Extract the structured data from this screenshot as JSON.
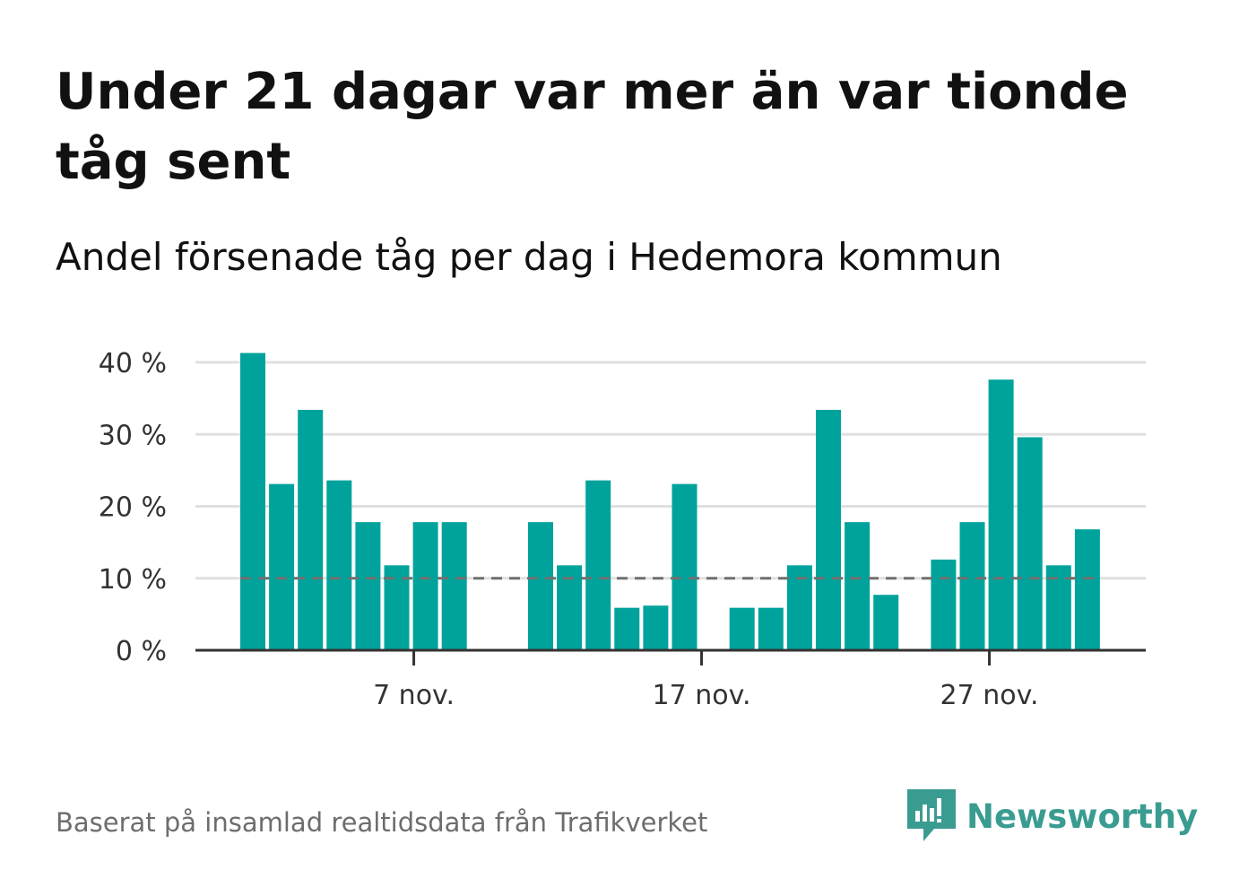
{
  "title": "Under 21 dagar var mer än var tionde tåg sent",
  "subtitle": "Andel försenade tåg per dag i Hedemora kommun",
  "footer": "Baserat på insamlad realtidsdata från Trafikverket",
  "brand": {
    "name": "Newsworthy",
    "icon": "newsworthy-logo-icon",
    "color": "#3a9c91"
  },
  "colors": {
    "bar": "#00a39b",
    "grid": "#e0e0e0",
    "axis": "#333333",
    "threshold": "#707070"
  },
  "chart_data": {
    "type": "bar",
    "x_unit": "day of November",
    "x": [
      1,
      2,
      3,
      4,
      5,
      6,
      7,
      8,
      9,
      10,
      11,
      12,
      13,
      14,
      15,
      16,
      17,
      18,
      19,
      20,
      21,
      22,
      23,
      24,
      25,
      26,
      27,
      28,
      29,
      30
    ],
    "values": [
      41.3,
      23.1,
      33.4,
      23.6,
      17.8,
      11.8,
      17.8,
      17.8,
      null,
      null,
      17.8,
      11.8,
      23.6,
      5.9,
      6.2,
      23.1,
      null,
      5.9,
      5.9,
      11.8,
      33.4,
      17.8,
      7.7,
      null,
      12.6,
      17.8,
      37.6,
      29.6,
      11.8,
      16.8
    ],
    "ylim": [
      0,
      40
    ],
    "y_ticks": [
      0,
      10,
      20,
      30,
      40
    ],
    "y_tick_labels": [
      "0 %",
      "10 %",
      "20 %",
      "30 %",
      "40 %"
    ],
    "x_ticks": [
      7,
      17,
      27
    ],
    "x_tick_labels": [
      "7 nov.",
      "17 nov.",
      "27 nov."
    ],
    "reference_line": {
      "value": 10,
      "style": "dashed"
    },
    "grid": true,
    "xlabel": "",
    "ylabel": ""
  }
}
